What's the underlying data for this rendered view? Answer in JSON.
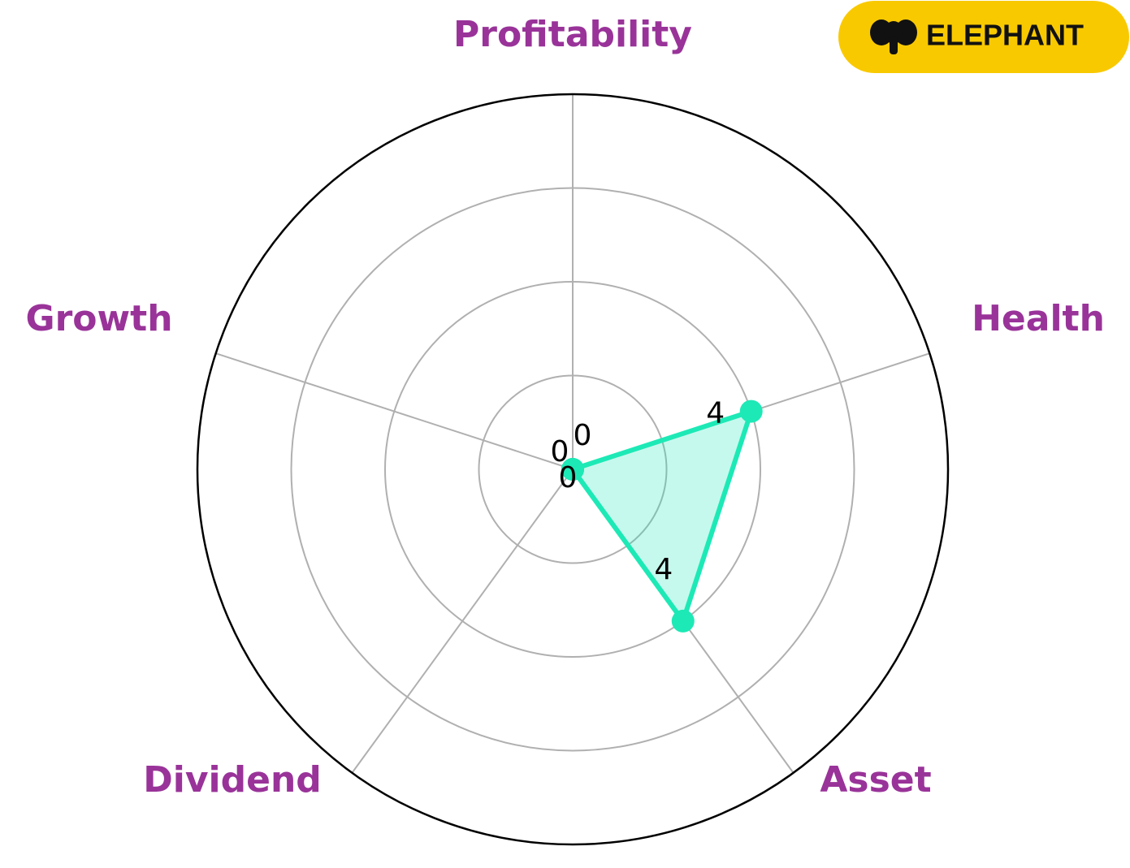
{
  "chart_data": {
    "type": "radar",
    "categories": [
      "Profitability",
      "Health",
      "Asset",
      "Dividend",
      "Growth"
    ],
    "values": [
      0,
      4,
      4,
      0,
      0
    ],
    "color": "#1de9b6",
    "label_color": "#993399",
    "ylim": [
      0,
      8
    ],
    "yticks": [
      2,
      4,
      6
    ],
    "grid": true
  },
  "logo": {
    "text": "ELEPHANT"
  }
}
